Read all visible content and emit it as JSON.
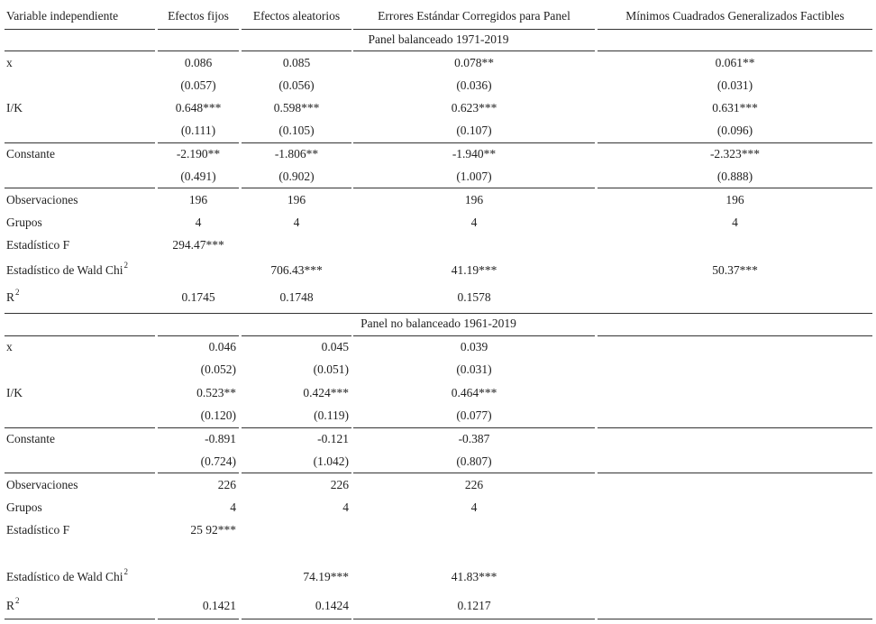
{
  "header": [
    "Variable independiente",
    "Efectos fijos",
    "Efectos aleatorios",
    "Errores Estándar Corregidos para Panel",
    "Mínimos Cuadrados Generalizados Factibles"
  ],
  "panels": [
    {
      "title": "Panel balanceado 1971-2019",
      "rows": [
        {
          "label": "x",
          "cells": [
            "0.086",
            "0.085",
            "0.078**",
            "0.061**"
          ]
        },
        {
          "label": null,
          "cells": [
            "(0.057)",
            "(0.056)",
            "(0.036)",
            "(0.031)"
          ]
        },
        {
          "label": "I/K",
          "cells": [
            "0.648***",
            "0.598***",
            "0.623***",
            "0.631***"
          ]
        },
        {
          "label": null,
          "cells": [
            "(0.111)",
            "(0.105)",
            "(0.107)",
            "(0.096)"
          ]
        },
        {
          "label": "Constante",
          "cells": [
            "-2.190**",
            "-1.806**",
            "-1.940**",
            "-2.323***"
          ]
        },
        {
          "label": null,
          "cells": [
            "(0.491)",
            "(0.902)",
            "(1.007)",
            "(0.888)"
          ]
        },
        {
          "label": "Observaciones",
          "cells": [
            "196",
            "196",
            "196",
            "196"
          ]
        },
        {
          "label": "Grupos",
          "cells": [
            "4",
            "4",
            "4",
            "4"
          ]
        },
        {
          "label": "Estadístico F",
          "cells": [
            "294.47***",
            null,
            null,
            null
          ]
        },
        {
          "label": "Estadístico de Wald Chi",
          "label_sup": "2",
          "cells": [
            null,
            "706.43***",
            "41.19***",
            "50.37***"
          ]
        },
        {
          "label": "R",
          "label_sup": "2",
          "cells": [
            "0.1745",
            "0.1748",
            "0.1578",
            null
          ]
        }
      ]
    },
    {
      "title": "Panel no balanceado 1961-2019",
      "rows": [
        {
          "label": "x",
          "cells": [
            "0.046",
            "0.045",
            "0.039",
            null
          ]
        },
        {
          "label": null,
          "cells": [
            "(0.052)",
            "(0.051)",
            "(0.031)",
            null
          ]
        },
        {
          "label": "I/K",
          "cells": [
            "0.523**",
            "0.424***",
            "0.464***",
            null
          ]
        },
        {
          "label": null,
          "cells": [
            "(0.120)",
            "(0.119)",
            "(0.077)",
            null
          ]
        },
        {
          "label": "Constante",
          "cells": [
            "-0.891",
            "-0.121",
            "-0.387",
            null
          ]
        },
        {
          "label": null,
          "cells": [
            "(0.724)",
            "(1.042)",
            "(0.807)",
            null
          ]
        },
        {
          "label": "Observaciones",
          "cells": [
            "226",
            "226",
            "226",
            null
          ]
        },
        {
          "label": "Grupos",
          "cells": [
            "4",
            "4",
            "4",
            null
          ]
        },
        {
          "label": "Estadístico F",
          "cells": [
            "25 92***",
            null,
            null,
            null
          ]
        },
        {
          "label": "Estadístico de Wald Chi",
          "label_sup": "2",
          "cells": [
            null,
            "74.19***",
            "41.83***",
            null
          ]
        },
        {
          "label": "R",
          "label_sup": "2",
          "cells": [
            "0.1421",
            "0.1424",
            "0.1217",
            null
          ]
        }
      ]
    }
  ]
}
